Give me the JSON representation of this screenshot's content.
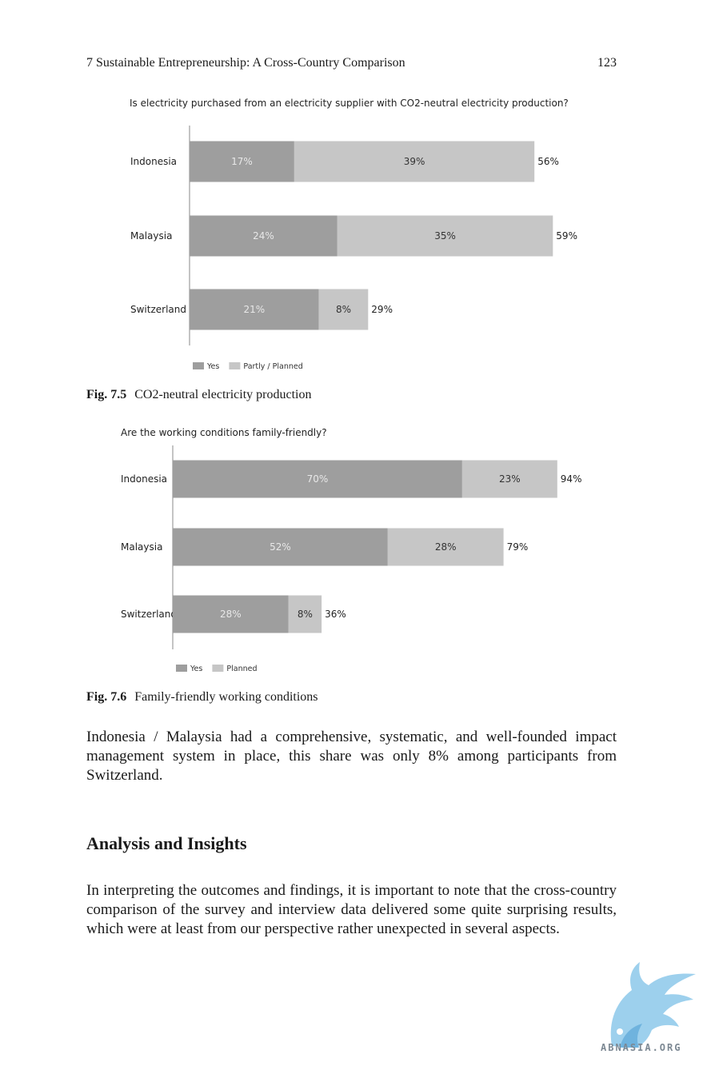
{
  "header": {
    "chapter_title": "7   Sustainable Entrepreneurship: A Cross-Country Comparison",
    "page_number": "123"
  },
  "figures": [
    {
      "caption_label": "Fig. 7.5",
      "caption_text": "CO2-neutral electricity production"
    },
    {
      "caption_label": "Fig. 7.6",
      "caption_text": "Family-friendly working conditions"
    }
  ],
  "chart_data": [
    {
      "type": "bar",
      "orientation": "horizontal",
      "stacked": true,
      "title": "Is electricity purchased from an electricity supplier with CO2-neutral electricity production?",
      "categories": [
        "Indonesia",
        "Malaysia",
        "Switzerland"
      ],
      "series": [
        {
          "name": "Yes",
          "values": [
            17,
            24,
            21
          ],
          "labels": [
            "17%",
            "24%",
            "21%"
          ],
          "color": "#9e9e9e"
        },
        {
          "name": "Partly / Planned",
          "values": [
            39,
            35,
            8
          ],
          "labels": [
            "39%",
            "35%",
            "8%"
          ],
          "color": "#c6c6c6"
        }
      ],
      "totals": [
        "56%",
        "59%",
        "29%"
      ],
      "legend": "bottom-left",
      "grid": false
    },
    {
      "type": "bar",
      "orientation": "horizontal",
      "stacked": true,
      "title": "Are the working conditions family-friendly?",
      "categories": [
        "Indonesia",
        "Malaysia",
        "Switzerland"
      ],
      "series": [
        {
          "name": "Yes",
          "values": [
            70,
            52,
            28
          ],
          "labels": [
            "70%",
            "52%",
            "28%"
          ],
          "color": "#9e9e9e"
        },
        {
          "name": "Planned",
          "values": [
            23,
            28,
            8
          ],
          "labels": [
            "23%",
            "28%",
            "8%"
          ],
          "color": "#c6c6c6"
        }
      ],
      "totals": [
        "94%",
        "79%",
        "36%"
      ],
      "legend": "bottom-left",
      "grid": false
    }
  ],
  "text": {
    "paragraph_1": "Indonesia / Malaysia had a comprehensive, systematic, and well-founded impact management system in place, this share was only 8% among participants from Switzerland.",
    "section_heading": "Analysis and Insights",
    "paragraph_2": "In interpreting the outcomes and findings, it is important to note that the cross-country comparison of the survey and interview data delivered some quite surprising results, which were at least from our perspective rather unexpected in several aspects."
  },
  "watermark": {
    "text": "ABNASIA.ORG",
    "color": "#8cc8ea"
  }
}
